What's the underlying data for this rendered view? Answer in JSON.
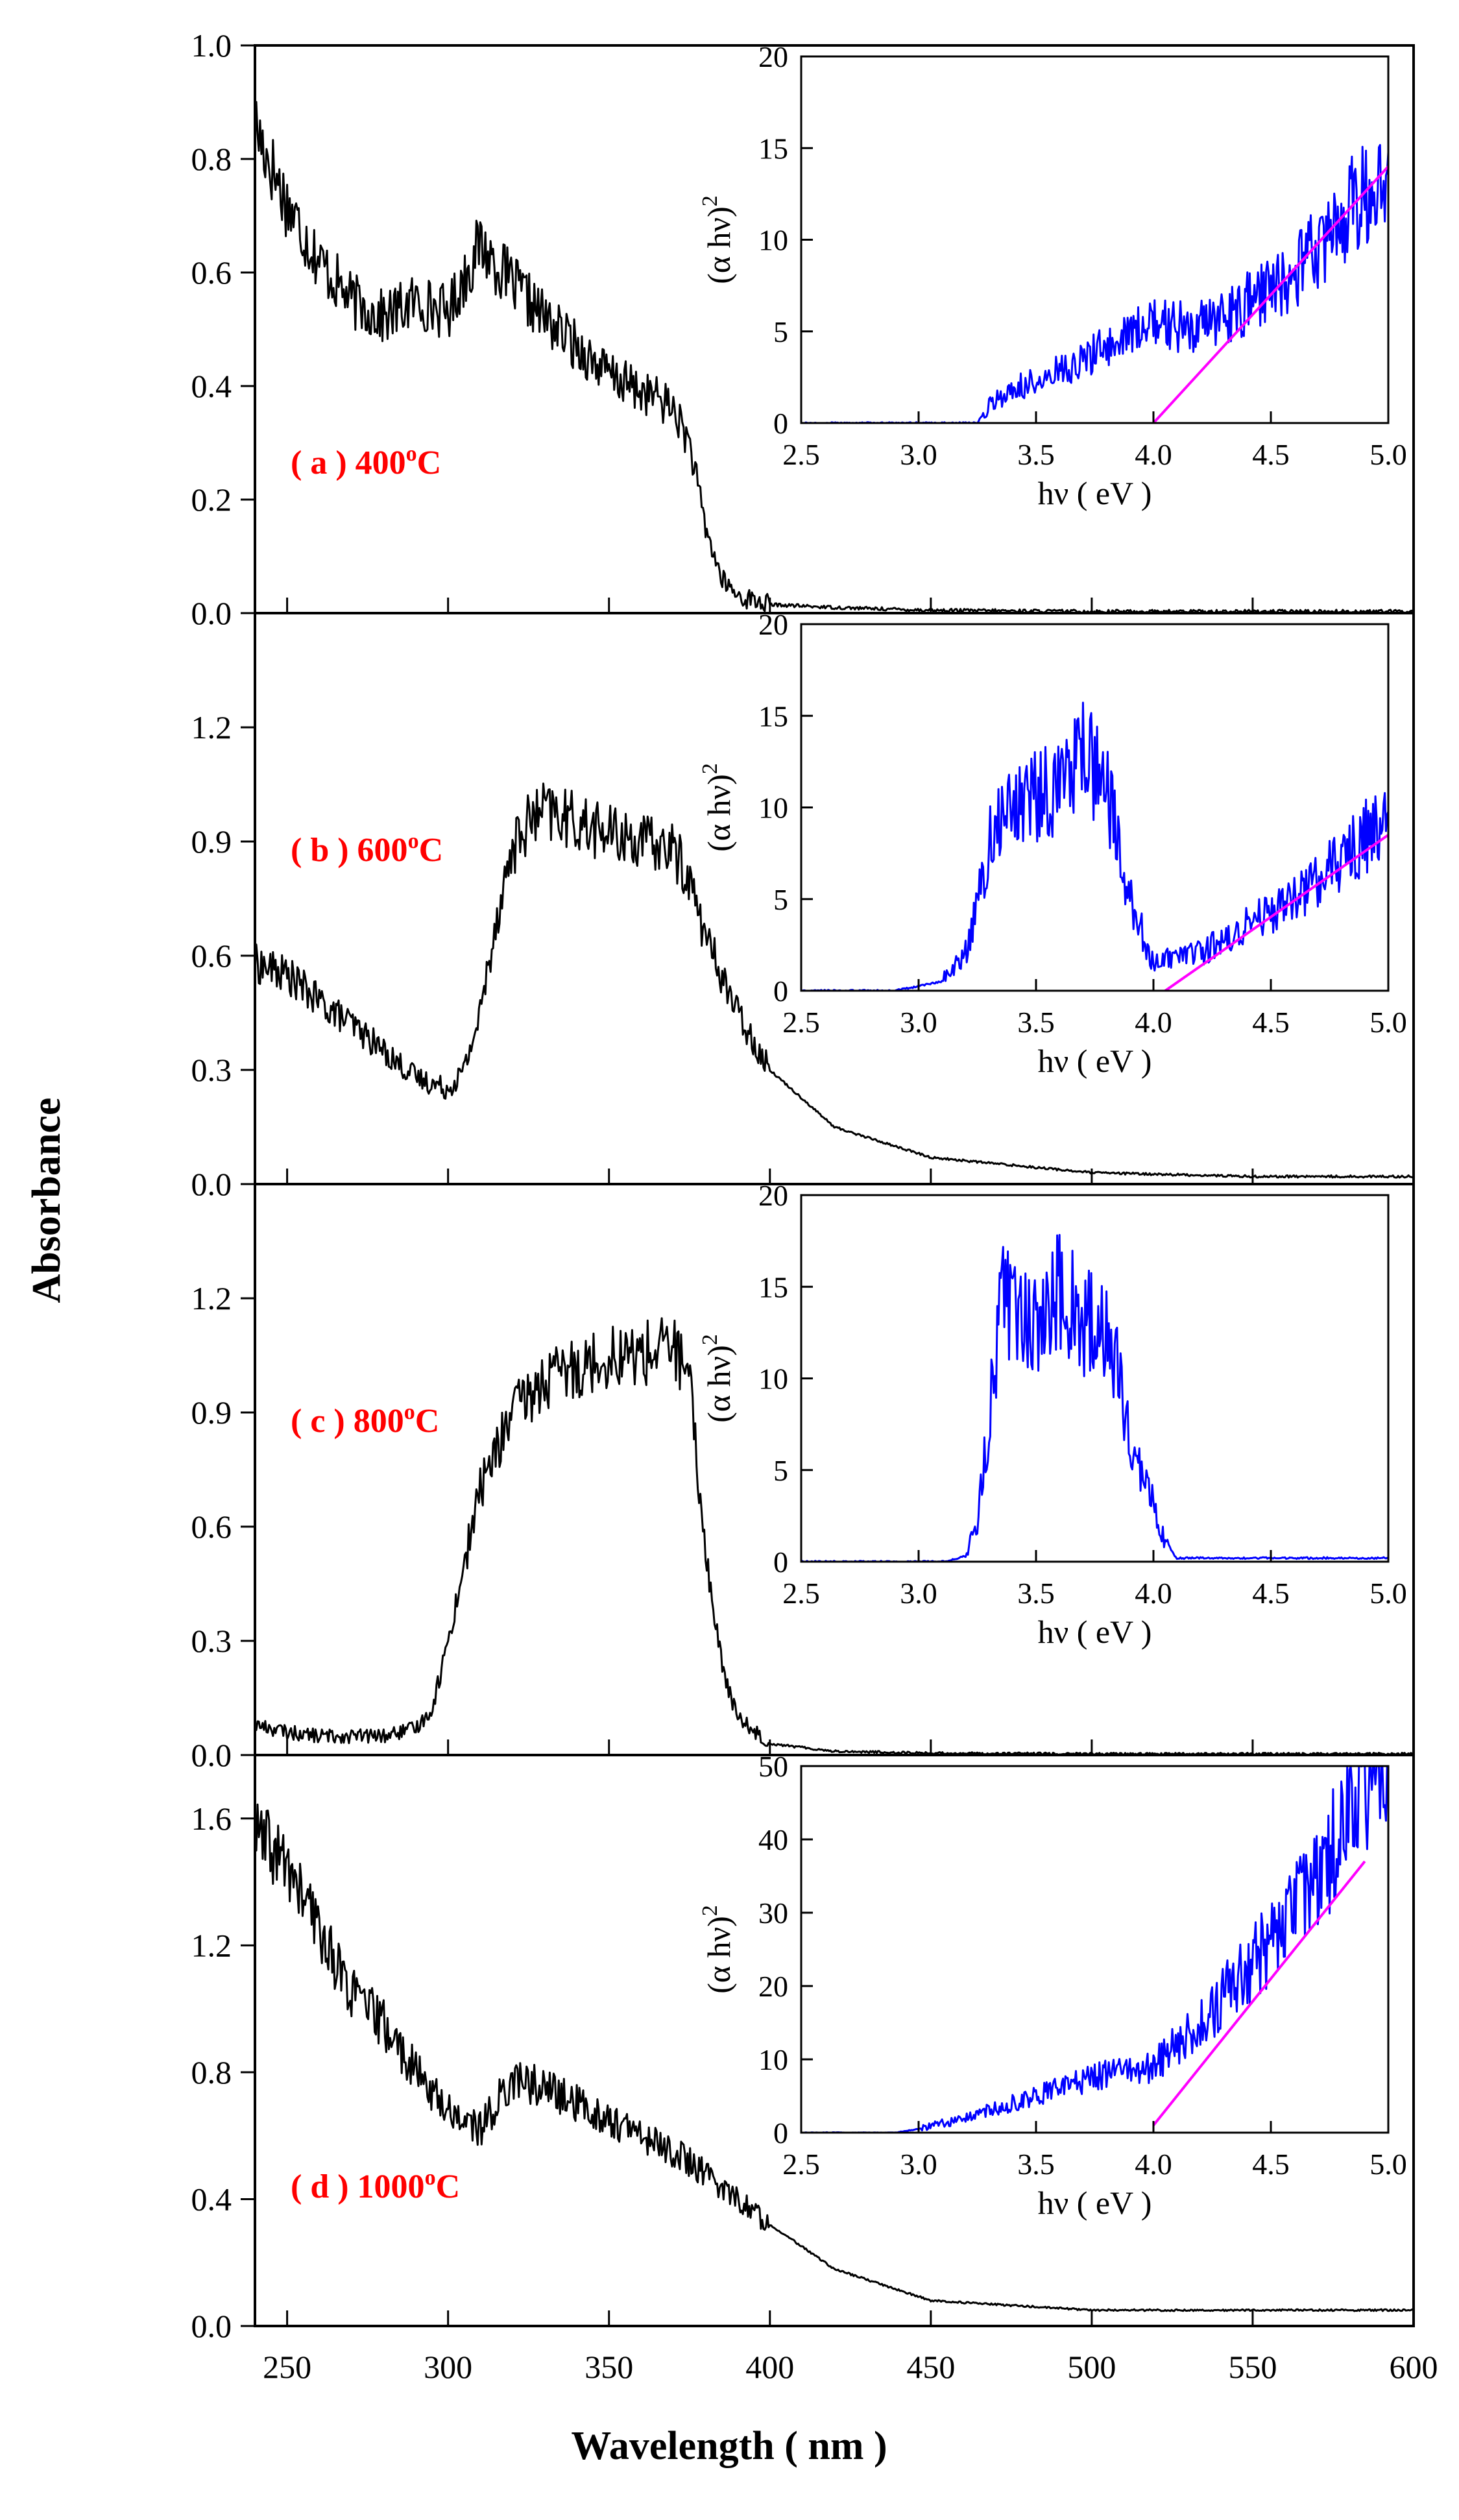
{
  "figure": {
    "xlabel": "Wavelength ( nm )",
    "ylabel": "Absorbance",
    "colors": {
      "main_trace": "#000000",
      "inset_trace": "#0000ff",
      "fit_line": "#ff00ff",
      "label": "#ff0000"
    }
  },
  "chart_data": [
    {
      "id": "a",
      "type": "line",
      "label": {
        "prefix": "( a ) ",
        "temp": "400",
        "sup": "o",
        "unit": "C"
      },
      "xlabel": "Wavelength ( nm )",
      "ylabel": "Absorbance",
      "xlim": [
        240,
        600
      ],
      "ylim": [
        0,
        1.0
      ],
      "xticks": [
        250,
        300,
        350,
        400,
        450,
        500,
        550,
        600
      ],
      "yticks": [
        0.0,
        0.2,
        0.4,
        0.6,
        0.8,
        1.0
      ],
      "ytick_labels": [
        "0.0",
        "0.2",
        "0.4",
        "0.6",
        "0.8",
        "1.0"
      ],
      "series": [
        {
          "name": "Absorbance (400°C)",
          "x": [
            240,
            250,
            260,
            270,
            280,
            290,
            300,
            310,
            320,
            330,
            340,
            350,
            360,
            365,
            370,
            375,
            380,
            385,
            390,
            400,
            420,
            450,
            500,
            550,
            600
          ],
          "y": [
            0.86,
            0.72,
            0.62,
            0.55,
            0.52,
            0.55,
            0.53,
            0.65,
            0.58,
            0.52,
            0.47,
            0.42,
            0.39,
            0.38,
            0.36,
            0.3,
            0.15,
            0.06,
            0.03,
            0.015,
            0.01,
            0.005,
            0.003,
            0.003,
            0.003
          ]
        }
      ],
      "inset": {
        "xlabel": "hν ( eV )",
        "ylabel": "(α hν)",
        "ylabel_sup": "2",
        "xlim": [
          2.5,
          5.0
        ],
        "ylim": [
          0,
          20
        ],
        "xticks": [
          2.5,
          3.0,
          3.5,
          4.0,
          4.5,
          5.0
        ],
        "xtick_labels": [
          "2.5",
          "3.0",
          "3.5",
          "4.0",
          "4.5",
          "5.0"
        ],
        "yticks": [
          0,
          5,
          10,
          15,
          20
        ],
        "ytick_labels": [
          "0",
          "5",
          "10",
          "15",
          "20"
        ],
        "series": {
          "x": [
            2.5,
            3.0,
            3.25,
            3.3,
            3.4,
            3.6,
            3.8,
            4.0,
            4.2,
            4.4,
            4.6,
            4.8,
            5.0
          ],
          "y": [
            0,
            0,
            0,
            1,
            1.8,
            2.8,
            4.2,
            5.5,
            5.2,
            6.5,
            8.0,
            11,
            14
          ]
        },
        "fit": {
          "x": [
            4.0,
            5.0
          ],
          "y": [
            0,
            14
          ]
        }
      }
    },
    {
      "id": "b",
      "type": "line",
      "label": {
        "prefix": "( b ) ",
        "temp": "600",
        "sup": "o",
        "unit": "C"
      },
      "xlabel": "Wavelength ( nm )",
      "ylabel": "Absorbance",
      "xlim": [
        240,
        600
      ],
      "ylim": [
        0,
        1.5
      ],
      "xticks": [
        250,
        300,
        350,
        400,
        450,
        500,
        550,
        600
      ],
      "yticks": [
        0.0,
        0.3,
        0.6,
        0.9,
        1.2
      ],
      "ytick_labels": [
        "0.0",
        "0.3",
        "0.6",
        "0.9",
        "1.2"
      ],
      "series": [
        {
          "name": "Absorbance (600°C)",
          "x": [
            240,
            250,
            260,
            270,
            280,
            290,
            300,
            305,
            310,
            315,
            320,
            325,
            330,
            340,
            350,
            360,
            370,
            375,
            380,
            390,
            400,
            420,
            450,
            500,
            550,
            600
          ],
          "y": [
            0.58,
            0.55,
            0.48,
            0.42,
            0.35,
            0.28,
            0.25,
            0.3,
            0.45,
            0.7,
            0.88,
            0.95,
            0.98,
            0.95,
            0.92,
            0.9,
            0.88,
            0.8,
            0.65,
            0.45,
            0.3,
            0.15,
            0.07,
            0.03,
            0.02,
            0.02
          ]
        }
      ],
      "inset": {
        "xlabel": "hν ( eV )",
        "ylabel": "(α hν)",
        "ylabel_sup": "2",
        "xlim": [
          2.5,
          5.0
        ],
        "ylim": [
          0,
          20
        ],
        "xticks": [
          2.5,
          3.0,
          3.5,
          4.0,
          4.5,
          5.0
        ],
        "xtick_labels": [
          "2.5",
          "3.0",
          "3.5",
          "4.0",
          "4.5",
          "5.0"
        ],
        "yticks": [
          0,
          5,
          10,
          15,
          20
        ],
        "ytick_labels": [
          "0",
          "5",
          "10",
          "15",
          "20"
        ],
        "series": {
          "x": [
            2.5,
            2.9,
            3.1,
            3.2,
            3.3,
            3.4,
            3.5,
            3.6,
            3.7,
            3.8,
            3.9,
            4.0,
            4.2,
            4.4,
            4.6,
            4.8,
            5.0
          ],
          "y": [
            0,
            0,
            0.5,
            2,
            8,
            10,
            10.5,
            11,
            13,
            11,
            5,
            1.5,
            2,
            3.5,
            5,
            7,
            9.5
          ]
        },
        "fit": {
          "x": [
            4.05,
            5.0
          ],
          "y": [
            0,
            8.5
          ]
        }
      }
    },
    {
      "id": "c",
      "type": "line",
      "label": {
        "prefix": "( c ) ",
        "temp": "800",
        "sup": "o",
        "unit": "C"
      },
      "xlabel": "Wavelength ( nm )",
      "ylabel": "Absorbance",
      "xlim": [
        240,
        600
      ],
      "ylim": [
        0,
        1.5
      ],
      "xticks": [
        250,
        300,
        350,
        400,
        450,
        500,
        550,
        600
      ],
      "yticks": [
        0.0,
        0.3,
        0.6,
        0.9,
        1.2
      ],
      "ytick_labels": [
        "0.0",
        "0.3",
        "0.6",
        "0.9",
        "1.2"
      ],
      "series": [
        {
          "name": "Absorbance (800°C)",
          "x": [
            240,
            250,
            260,
            270,
            280,
            290,
            295,
            300,
            305,
            310,
            315,
            320,
            330,
            340,
            350,
            360,
            370,
            375,
            378,
            382,
            386,
            390,
            400,
            420,
            450,
            500,
            550,
            600
          ],
          "y": [
            0.08,
            0.06,
            0.05,
            0.05,
            0.05,
            0.07,
            0.12,
            0.3,
            0.5,
            0.7,
            0.8,
            0.9,
            0.98,
            1.02,
            1.05,
            1.05,
            1.08,
            0.98,
            0.7,
            0.4,
            0.2,
            0.1,
            0.03,
            0.01,
            0.005,
            0.003,
            0.003,
            0.003
          ]
        }
      ],
      "inset": {
        "xlabel": "hν ( eV )",
        "ylabel": "(α hν)",
        "ylabel_sup": "2",
        "xlim": [
          2.5,
          5.0
        ],
        "ylim": [
          0,
          20
        ],
        "xticks": [
          2.5,
          3.0,
          3.5,
          4.0,
          4.5,
          5.0
        ],
        "xtick_labels": [
          "2.5",
          "3.0",
          "3.5",
          "4.0",
          "4.5",
          "5.0"
        ],
        "yticks": [
          0,
          5,
          10,
          15,
          20
        ],
        "ytick_labels": [
          "0",
          "5",
          "10",
          "15",
          "20"
        ],
        "series": {
          "x": [
            2.5,
            3.1,
            3.2,
            3.25,
            3.3,
            3.35,
            3.4,
            3.5,
            3.6,
            3.7,
            3.8,
            3.9,
            4.0,
            4.05,
            4.1,
            5.0
          ],
          "y": [
            0,
            0,
            0.3,
            2,
            8,
            14,
            14,
            13,
            15,
            13,
            13,
            7,
            3,
            1,
            0.2,
            0.2
          ]
        },
        "fit": null
      }
    },
    {
      "id": "d",
      "type": "line",
      "label": {
        "prefix": "( d ) ",
        "temp": "1000",
        "sup": "o",
        "unit": "C"
      },
      "xlabel": "Wavelength ( nm )",
      "ylabel": "Absorbance",
      "xlim": [
        240,
        600
      ],
      "ylim": [
        0,
        1.8
      ],
      "xticks": [
        250,
        300,
        350,
        400,
        450,
        500,
        550,
        600
      ],
      "yticks": [
        0.0,
        0.4,
        0.8,
        1.2,
        1.6
      ],
      "ytick_labels": [
        "0.0",
        "0.4",
        "0.8",
        "1.2",
        "1.6"
      ],
      "series": [
        {
          "name": "Absorbance (1000°C)",
          "x": [
            240,
            250,
            260,
            270,
            280,
            290,
            300,
            310,
            320,
            330,
            340,
            350,
            360,
            370,
            380,
            390,
            400,
            420,
            450,
            500,
            550,
            600
          ],
          "y": [
            1.55,
            1.45,
            1.25,
            1.05,
            0.95,
            0.8,
            0.68,
            0.62,
            0.78,
            0.75,
            0.7,
            0.65,
            0.6,
            0.55,
            0.48,
            0.4,
            0.32,
            0.18,
            0.08,
            0.05,
            0.05,
            0.05
          ]
        }
      ],
      "inset": {
        "xlabel": "hν ( eV )",
        "ylabel": "(α hν)",
        "ylabel_sup": "2",
        "xlim": [
          2.5,
          5.0
        ],
        "ylim": [
          0,
          50
        ],
        "xticks": [
          2.5,
          3.0,
          3.5,
          4.0,
          4.5,
          5.0
        ],
        "xtick_labels": [
          "2.5",
          "3.0",
          "3.5",
          "4.0",
          "4.5",
          "5.0"
        ],
        "yticks": [
          0,
          10,
          20,
          30,
          40,
          50
        ],
        "ytick_labels": [
          "0",
          "10",
          "20",
          "30",
          "40",
          "50"
        ],
        "series": {
          "x": [
            2.5,
            2.9,
            3.0,
            3.2,
            3.4,
            3.6,
            3.8,
            4.0,
            4.2,
            4.4,
            4.6,
            4.8,
            4.9,
            5.0
          ],
          "y": [
            0,
            0,
            0.5,
            2,
            4,
            6,
            8,
            9,
            15,
            22,
            30,
            40,
            48,
            50
          ]
        },
        "fit": {
          "x": [
            4.0,
            4.9
          ],
          "y": [
            1,
            37
          ]
        }
      }
    }
  ]
}
